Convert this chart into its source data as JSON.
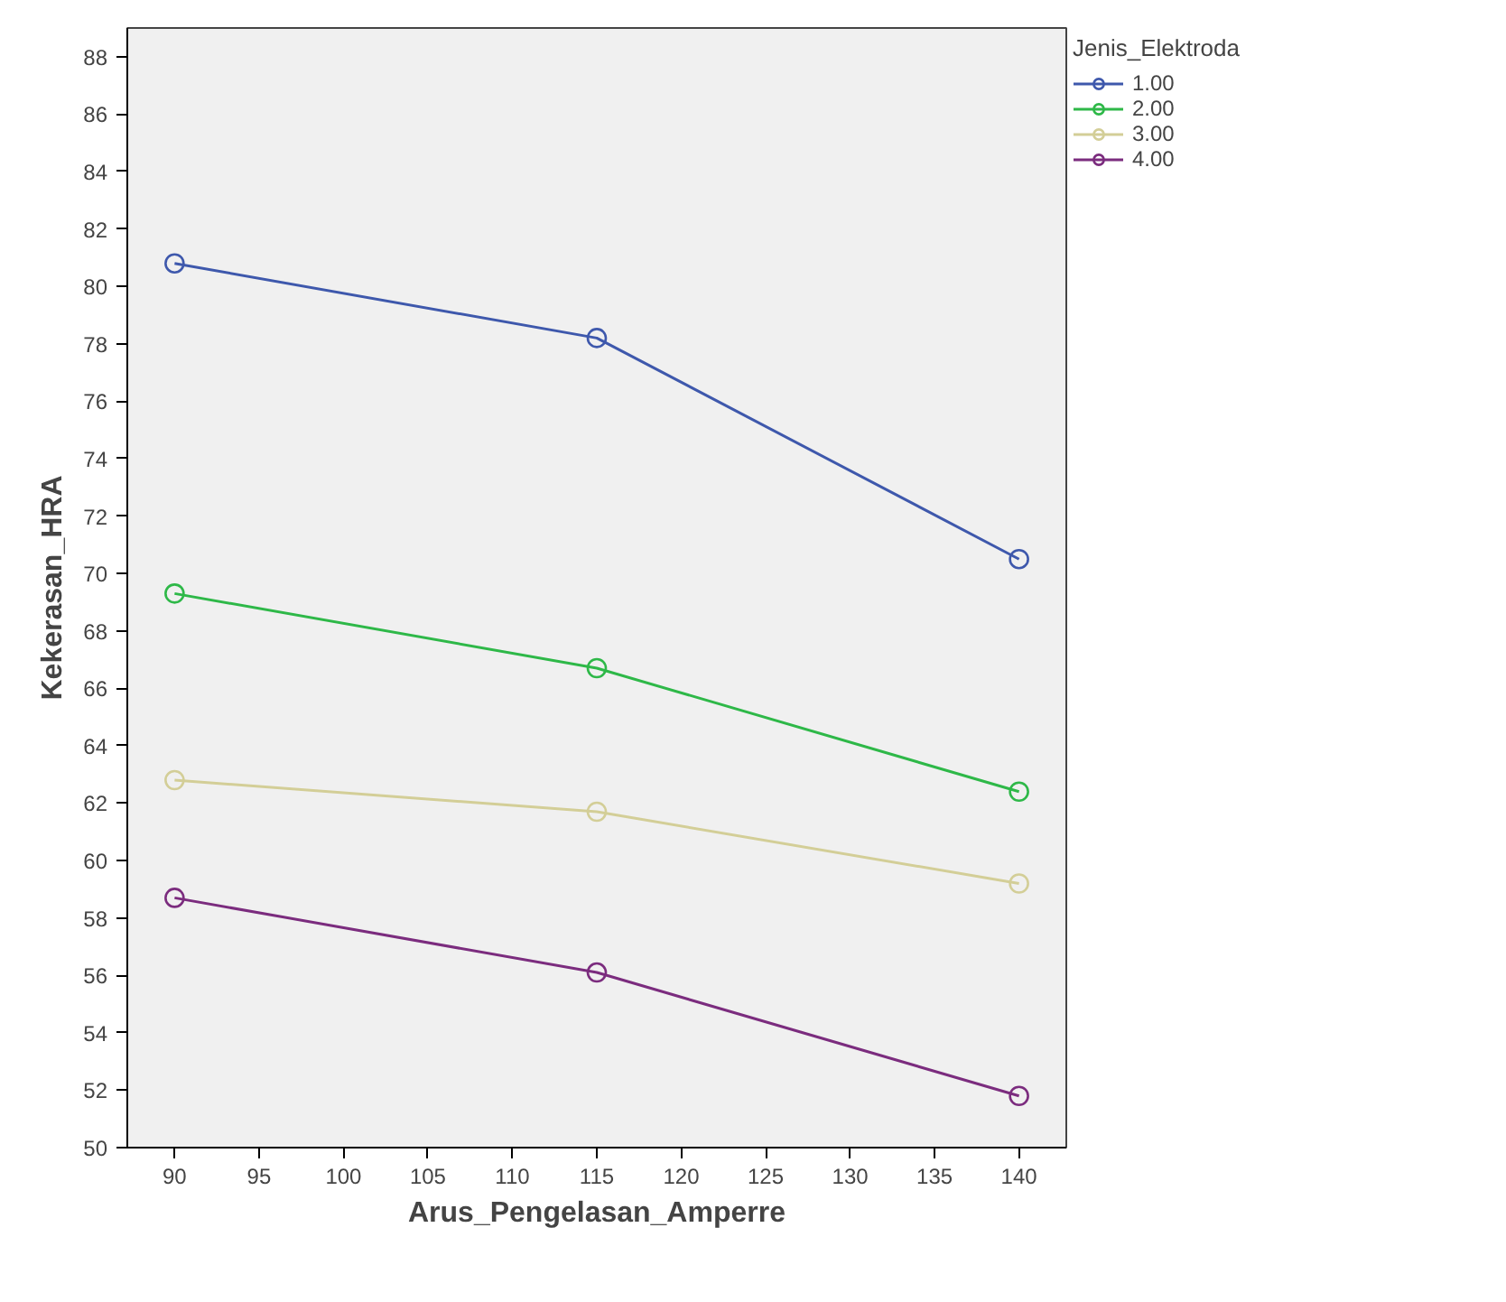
{
  "chart_data": {
    "type": "line",
    "xlabel": "Arus_Pengelasan_Amperre",
    "ylabel": "Kekerasan_HRA",
    "legend_title": "Jenis_Elektroda",
    "x": [
      90,
      115,
      140
    ],
    "series": [
      {
        "name": "1.00",
        "color": "#3e58ac",
        "values": [
          80.8,
          78.2,
          70.5
        ]
      },
      {
        "name": "2.00",
        "color": "#2eb848",
        "values": [
          69.3,
          66.7,
          62.4
        ]
      },
      {
        "name": "3.00",
        "color": "#d3ce97",
        "values": [
          62.8,
          61.7,
          59.2
        ]
      },
      {
        "name": "4.00",
        "color": "#7b2c7e",
        "values": [
          58.7,
          56.1,
          51.8
        ]
      }
    ],
    "xlim": [
      87.2,
      142.8
    ],
    "ylim": [
      50,
      89
    ],
    "xticks": [
      90,
      95,
      100,
      105,
      110,
      115,
      120,
      125,
      130,
      135,
      140
    ],
    "yticks": [
      50,
      52,
      54,
      56,
      58,
      60,
      62,
      64,
      66,
      68,
      70,
      72,
      74,
      76,
      78,
      80,
      82,
      84,
      86,
      88
    ],
    "grid": false,
    "legend": "top right",
    "marker": "circle",
    "line_style": "solid"
  }
}
